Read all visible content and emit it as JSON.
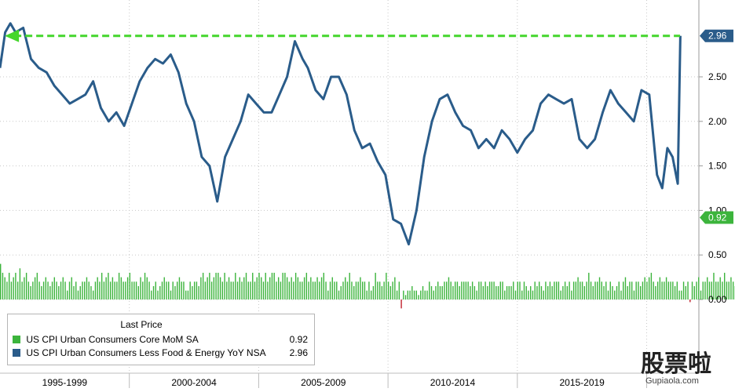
{
  "colors": {
    "core_mom": "#3cb43c",
    "core_yoy": "#2a5c8a",
    "negative": "#c0202c",
    "arrow": "#44d62c",
    "axis_badge_yoy": "#2a5c8a",
    "axis_badge_mom": "#3cb43c"
  },
  "legend": {
    "title": "Last Price",
    "items": [
      {
        "label": "US CPI Urban Consumers Core MoM SA",
        "value": "0.92"
      },
      {
        "label": "US CPI Urban Consumers Less Food & Energy YoY NSA",
        "value": "2.96"
      }
    ]
  },
  "watermark": {
    "text": "股票啦",
    "site": "Gupiaola.com"
  },
  "chart_data": {
    "type": "line",
    "x_tick_labels": [
      "1995-1999",
      "2000-2004",
      "2005-2009",
      "2010-2014",
      "2015-2019"
    ],
    "y_ticks": [
      "0.00",
      "0.50",
      "1.00",
      "1.50",
      "2.00",
      "2.50"
    ],
    "ylim": [
      -0.4,
      3.3
    ],
    "grid": "horizontal-dotted",
    "last_values": {
      "core_yoy": "2.96",
      "core_mom": "0.92"
    },
    "series": [
      {
        "name": "US CPI Urban Consumers Less Food & Energy YoY NSA",
        "kind": "line",
        "x": [
          1995.0,
          1995.2,
          1995.4,
          1995.6,
          1995.9,
          1996.2,
          1996.5,
          1996.8,
          1997.1,
          1997.4,
          1997.7,
          1998.0,
          1998.3,
          1998.6,
          1998.9,
          1999.2,
          1999.5,
          1999.8,
          2000.1,
          2000.4,
          2000.7,
          2001.0,
          2001.3,
          2001.6,
          2001.9,
          2002.2,
          2002.5,
          2002.8,
          2003.1,
          2003.4,
          2003.7,
          2004.0,
          2004.3,
          2004.6,
          2004.9,
          2005.2,
          2005.5,
          2005.8,
          2006.1,
          2006.4,
          2006.7,
          2006.9,
          2007.2,
          2007.5,
          2007.8,
          2008.1,
          2008.4,
          2008.7,
          2009.0,
          2009.3,
          2009.6,
          2009.9,
          2010.2,
          2010.5,
          2010.8,
          2011.1,
          2011.4,
          2011.7,
          2012.0,
          2012.3,
          2012.6,
          2012.9,
          2013.2,
          2013.5,
          2013.8,
          2014.1,
          2014.4,
          2014.7,
          2015.0,
          2015.3,
          2015.6,
          2015.9,
          2016.2,
          2016.5,
          2016.8,
          2017.1,
          2017.4,
          2017.7,
          2018.0,
          2018.3,
          2018.6,
          2018.9,
          2019.2,
          2019.5,
          2019.8,
          2020.1,
          2020.4,
          2020.6,
          2020.8,
          2021.0,
          2021.2,
          2021.3
        ],
        "y": [
          2.6,
          3.0,
          3.1,
          3.0,
          3.05,
          2.7,
          2.6,
          2.55,
          2.4,
          2.3,
          2.2,
          2.25,
          2.3,
          2.45,
          2.15,
          2.0,
          2.1,
          1.95,
          2.2,
          2.45,
          2.6,
          2.7,
          2.65,
          2.75,
          2.55,
          2.2,
          2.0,
          1.6,
          1.5,
          1.1,
          1.6,
          1.8,
          2.0,
          2.3,
          2.2,
          2.1,
          2.1,
          2.3,
          2.5,
          2.9,
          2.7,
          2.6,
          2.35,
          2.25,
          2.5,
          2.5,
          2.3,
          1.9,
          1.7,
          1.75,
          1.55,
          1.4,
          0.9,
          0.85,
          0.62,
          1.0,
          1.6,
          2.0,
          2.25,
          2.3,
          2.1,
          1.95,
          1.9,
          1.7,
          1.8,
          1.7,
          1.9,
          1.8,
          1.65,
          1.8,
          1.9,
          2.2,
          2.3,
          2.25,
          2.2,
          2.25,
          1.8,
          1.7,
          1.8,
          2.1,
          2.35,
          2.2,
          2.1,
          2.0,
          2.35,
          2.3,
          1.4,
          1.25,
          1.7,
          1.6,
          1.3,
          2.96
        ]
      },
      {
        "name": "US CPI Urban Consumers Core MoM SA",
        "kind": "bar",
        "note": "monthly values",
        "x_start": 1995.0,
        "x_step": 0.0833,
        "y": [
          0.4,
          0.3,
          0.25,
          0.2,
          0.3,
          0.2,
          0.25,
          0.3,
          0.2,
          0.35,
          0.2,
          0.25,
          0.3,
          0.2,
          0.15,
          0.2,
          0.25,
          0.3,
          0.2,
          0.15,
          0.2,
          0.25,
          0.2,
          0.15,
          0.2,
          0.25,
          0.2,
          0.15,
          0.2,
          0.25,
          0.2,
          0.1,
          0.2,
          0.25,
          0.15,
          0.2,
          0.1,
          0.15,
          0.2,
          0.2,
          0.25,
          0.2,
          0.15,
          0.1,
          0.2,
          0.25,
          0.2,
          0.3,
          0.2,
          0.25,
          0.3,
          0.2,
          0.25,
          0.2,
          0.2,
          0.3,
          0.25,
          0.2,
          0.2,
          0.25,
          0.3,
          0.2,
          0.2,
          0.2,
          0.15,
          0.25,
          0.2,
          0.3,
          0.25,
          0.2,
          0.1,
          0.15,
          0.2,
          0.1,
          0.15,
          0.2,
          0.25,
          0.2,
          0.2,
          0.1,
          0.2,
          0.15,
          0.2,
          0.25,
          0.2,
          0.2,
          0.1,
          0.1,
          0.2,
          0.15,
          0.2,
          0.2,
          0.15,
          0.25,
          0.3,
          0.2,
          0.25,
          0.3,
          0.2,
          0.25,
          0.3,
          0.3,
          0.25,
          0.2,
          0.3,
          0.2,
          0.25,
          0.2,
          0.2,
          0.3,
          0.2,
          0.25,
          0.2,
          0.25,
          0.3,
          0.2,
          0.2,
          0.3,
          0.2,
          0.25,
          0.3,
          0.25,
          0.2,
          0.3,
          0.2,
          0.25,
          0.3,
          0.3,
          0.2,
          0.25,
          0.2,
          0.3,
          0.3,
          0.25,
          0.2,
          0.25,
          0.2,
          0.3,
          0.25,
          0.2,
          0.2,
          0.25,
          0.3,
          0.2,
          0.25,
          0.2,
          0.2,
          0.25,
          0.2,
          0.25,
          0.3,
          0.2,
          0.1,
          0.2,
          0.25,
          0.2,
          0.2,
          0.1,
          0.15,
          0.2,
          0.25,
          0.2,
          0.3,
          0.2,
          0.15,
          0.2,
          0.2,
          0.25,
          0.2,
          0.2,
          0.1,
          0.2,
          0.1,
          0.15,
          0.3,
          0.2,
          0.2,
          0.15,
          0.2,
          0.3,
          0.2,
          0.15,
          0.2,
          0.25,
          0.1,
          0.2,
          -0.1,
          0.1,
          0.05,
          0.1,
          0.1,
          0.15,
          0.1,
          0.1,
          0.05,
          0.1,
          0.15,
          0.1,
          0.1,
          0.2,
          0.15,
          0.1,
          0.15,
          0.2,
          0.15,
          0.15,
          0.2,
          0.2,
          0.25,
          0.2,
          0.15,
          0.2,
          0.2,
          0.15,
          0.2,
          0.2,
          0.2,
          0.2,
          0.15,
          0.2,
          0.15,
          0.1,
          0.2,
          0.2,
          0.15,
          0.2,
          0.15,
          0.2,
          0.2,
          0.2,
          0.15,
          0.15,
          0.2,
          0.2,
          0.1,
          0.15,
          0.15,
          0.15,
          0.2,
          0.1,
          0.2,
          0.2,
          0.1,
          0.2,
          0.15,
          0.1,
          0.15,
          0.1,
          0.2,
          0.15,
          0.2,
          0.15,
          0.1,
          0.2,
          0.15,
          0.2,
          0.15,
          0.2,
          0.2,
          0.2,
          0.1,
          0.15,
          0.2,
          0.15,
          0.2,
          0.1,
          0.2,
          0.2,
          0.25,
          0.2,
          0.2,
          0.15,
          0.2,
          0.3,
          0.2,
          0.15,
          0.2,
          0.2,
          0.25,
          0.2,
          0.15,
          0.2,
          0.1,
          0.2,
          0.15,
          0.1,
          0.15,
          0.2,
          0.1,
          0.2,
          0.25,
          0.15,
          0.2,
          0.2,
          0.1,
          0.2,
          0.2,
          0.15,
          0.2,
          0.25,
          0.2,
          0.25,
          0.3,
          0.2,
          0.15,
          0.2,
          0.25,
          0.2,
          0.2,
          0.25,
          0.2,
          0.2,
          0.2,
          0.15,
          0.2,
          0.1,
          0.1,
          0.2,
          0.15,
          0.2,
          -0.03,
          0.2,
          0.15,
          0.2,
          0.25,
          0.1,
          0.2,
          0.2,
          0.25,
          0.2,
          0.2,
          0.3,
          0.2,
          0.2,
          0.25,
          0.2,
          0.3,
          0.2,
          0.2,
          0.25,
          0.2,
          0.15,
          0.2,
          0.25,
          0.2,
          0.3,
          0.2,
          0.2,
          0.1,
          0.2,
          0.3,
          0.2,
          0.25,
          0.2,
          0.2,
          0.3,
          0.2,
          0.15,
          0.2,
          0.25,
          0.2,
          0.3,
          0.2,
          0.2,
          0.3,
          0.2,
          0.2,
          0.25,
          0.2,
          0.3,
          0.2,
          0.2,
          0.25,
          0.25,
          0.3,
          0.2,
          0.2,
          0.3,
          0.25,
          0.2,
          0.3,
          0.3,
          0.2,
          0.3,
          0.25,
          0.3,
          0.4,
          -0.1,
          -0.45,
          -0.1,
          0.05,
          0.55,
          0.6,
          0.4,
          0.2,
          0.1,
          0.2,
          0.2,
          0.1,
          0.1,
          0.3,
          0.2,
          0.1,
          0.3,
          0.92
        ]
      }
    ]
  }
}
